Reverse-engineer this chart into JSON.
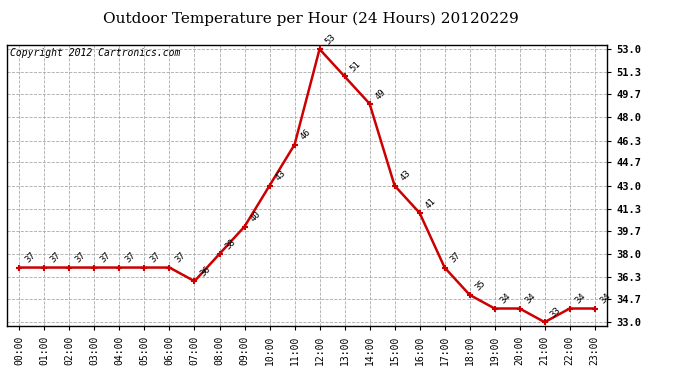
{
  "title": "Outdoor Temperature per Hour (24 Hours) 20120229",
  "copyright": "Copyright 2012 Cartronics.com",
  "hours": [
    "00:00",
    "01:00",
    "02:00",
    "03:00",
    "04:00",
    "05:00",
    "06:00",
    "07:00",
    "08:00",
    "09:00",
    "10:00",
    "11:00",
    "12:00",
    "13:00",
    "14:00",
    "15:00",
    "16:00",
    "17:00",
    "18:00",
    "19:00",
    "20:00",
    "21:00",
    "22:00",
    "23:00"
  ],
  "temps": [
    37,
    37,
    37,
    37,
    37,
    37,
    37,
    36,
    38,
    40,
    43,
    46,
    53,
    51,
    49,
    43,
    41,
    37,
    35,
    34,
    34,
    33,
    34,
    34
  ],
  "y_ticks": [
    33.0,
    34.7,
    36.3,
    38.0,
    39.7,
    41.3,
    43.0,
    44.7,
    46.3,
    48.0,
    49.7,
    51.3,
    53.0
  ],
  "ylim_min": 32.7,
  "ylim_max": 53.3,
  "line_color": "#cc0000",
  "marker_color": "#cc0000",
  "grid_color": "#aaaaaa",
  "bg_color": "#ffffff",
  "title_fontsize": 11,
  "copyright_fontsize": 7,
  "annotation_fontsize": 6.5,
  "tick_fontsize": 7.5,
  "x_tick_fontsize": 7
}
